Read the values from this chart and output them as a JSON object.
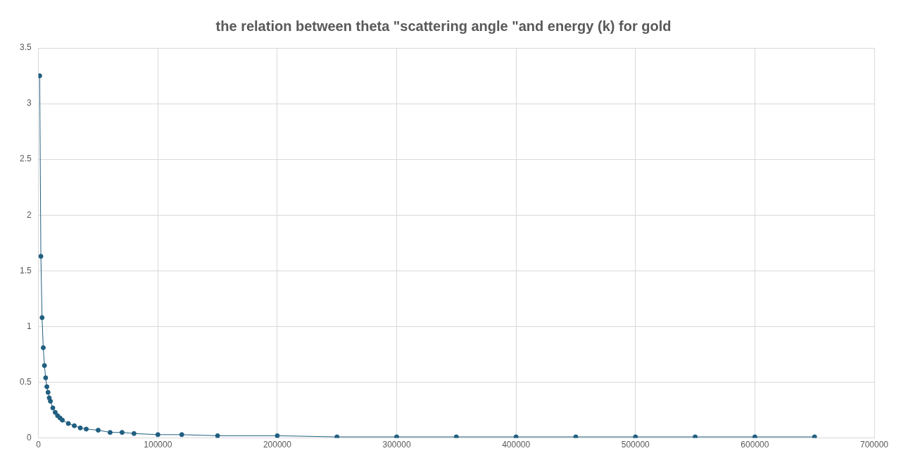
{
  "chart_data": {
    "type": "line",
    "title": "the relation between theta \"scattering angle \"and energy (k) for gold",
    "x": [
      1000,
      2000,
      3000,
      4000,
      5000,
      6000,
      7000,
      8000,
      9000,
      10000,
      12000,
      14000,
      16000,
      18000,
      20000,
      25000,
      30000,
      35000,
      40000,
      50000,
      60000,
      70000,
      80000,
      100000,
      120000,
      150000,
      200000,
      250000,
      300000,
      350000,
      400000,
      450000,
      500000,
      550000,
      600000,
      650000
    ],
    "series": [
      {
        "color": "#215f80",
        "values": [
          3.25,
          1.63,
          1.08,
          0.81,
          0.65,
          0.54,
          0.46,
          0.41,
          0.36,
          0.33,
          0.27,
          0.23,
          0.2,
          0.18,
          0.16,
          0.13,
          0.11,
          0.09,
          0.08,
          0.07,
          0.05,
          0.05,
          0.04,
          0.03,
          0.03,
          0.02,
          0.02,
          0.01,
          0.01,
          0.01,
          0.01,
          0.01,
          0.01,
          0.01,
          0.01,
          0.01
        ]
      }
    ],
    "xlim": [
      0,
      700000
    ],
    "xticks": [
      0,
      100000,
      200000,
      300000,
      400000,
      500000,
      600000,
      700000
    ],
    "ylim": [
      0,
      3.5
    ],
    "yticks": [
      0,
      0.5,
      1,
      1.5,
      2,
      2.5,
      3,
      3.5
    ],
    "grid": true,
    "legend": false,
    "marker": "circle",
    "line_style": "solid"
  }
}
